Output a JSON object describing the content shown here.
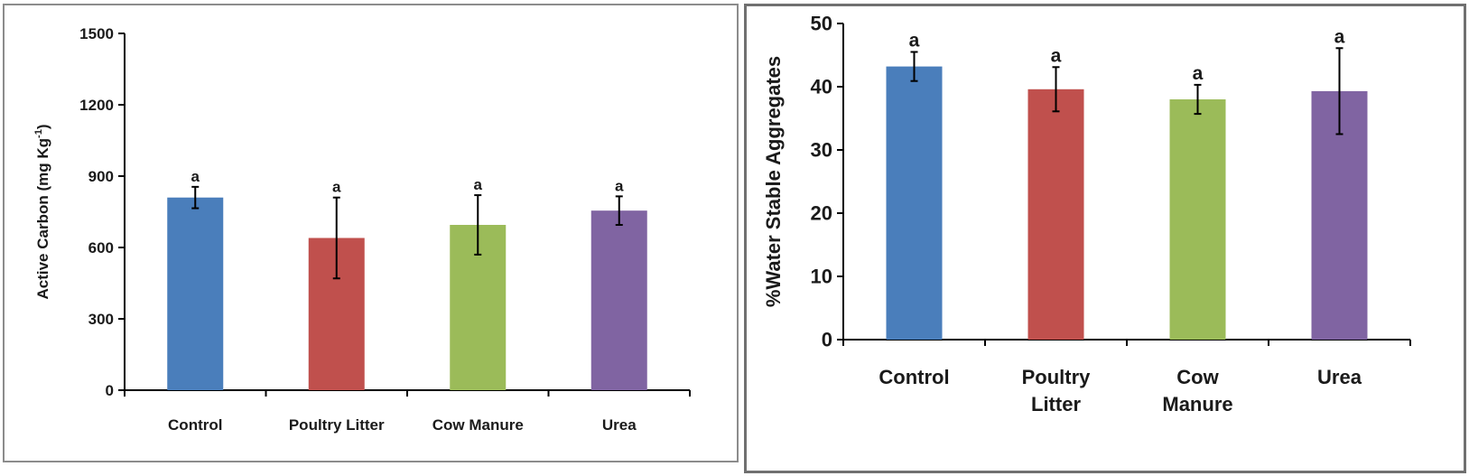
{
  "chart_data": [
    {
      "type": "bar",
      "categories": [
        "Control",
        "Poultry Litter",
        "Cow Manure",
        "Urea"
      ],
      "values": [
        810,
        640,
        695,
        755
      ],
      "error": [
        45,
        170,
        125,
        60
      ],
      "letters": [
        "a",
        "a",
        "a",
        "a"
      ],
      "colors": [
        "#4a7ebb",
        "#c0504d",
        "#9bbb59",
        "#8064a2"
      ],
      "ylabel": "Active Carbon (mg Kg-1)",
      "ylabel_main": "Active Carbon (mg Kg",
      "ylabel_sup": "-1",
      "ylabel_close": ")",
      "ylim": [
        0,
        1500
      ],
      "yticks": [
        0,
        300,
        600,
        900,
        1200,
        1500
      ],
      "grid": false
    },
    {
      "type": "bar",
      "categories": [
        "Control",
        "Poultry Litter",
        "Cow Manure",
        "Urea"
      ],
      "category_lines": [
        [
          "Control"
        ],
        [
          "Poultry",
          "Litter"
        ],
        [
          "Cow",
          "Manure"
        ],
        [
          "Urea"
        ]
      ],
      "values": [
        43.2,
        39.6,
        38.0,
        39.3
      ],
      "error": [
        2.3,
        3.5,
        2.3,
        6.8
      ],
      "letters": [
        "a",
        "a",
        "a",
        "a"
      ],
      "colors": [
        "#4a7ebb",
        "#c0504d",
        "#9bbb59",
        "#8064a2"
      ],
      "ylabel": "%Water Stable Aggregates",
      "ylim": [
        0,
        50
      ],
      "yticks": [
        0,
        10,
        20,
        30,
        40,
        50
      ],
      "grid": false
    }
  ]
}
